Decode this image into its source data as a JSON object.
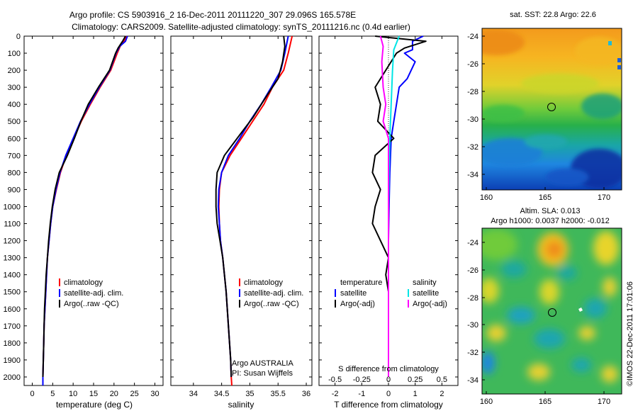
{
  "header": {
    "title_line1": "Argo profile: CS 5903916_2 16-Dec-2011 20111220_307 29.096S 165.578E",
    "title_line2": "Climatology: CARS2009. Satellite-adjusted climatology: synTS_20111216.nc (0.4d earlier)"
  },
  "colors": {
    "climatology": "#ff0000",
    "satellite": "#0000ff",
    "argo": "#000000",
    "salinity_satellite": "#00e5e5",
    "salinity_argo": "#ff00ff"
  },
  "chart_data": [
    {
      "id": "temperature",
      "type": "line",
      "xlabel": "temperature (deg C)",
      "xlim": [
        -2,
        32
      ],
      "xticks": [
        0,
        5,
        10,
        15,
        20,
        25,
        30
      ],
      "ylim": [
        0,
        2050
      ],
      "yticks": [
        0,
        100,
        200,
        300,
        400,
        500,
        600,
        700,
        800,
        900,
        1000,
        1100,
        1200,
        1300,
        1400,
        1500,
        1600,
        1700,
        1800,
        1900,
        2000
      ],
      "legend": [
        "climatology",
        "satellite-adj. clim.",
        "Argo(..raw -QC)"
      ],
      "series": [
        {
          "name": "climatology",
          "color": "#ff0000",
          "points": [
            [
              23.0,
              0
            ],
            [
              22.4,
              30
            ],
            [
              21.5,
              60
            ],
            [
              20.8,
              100
            ],
            [
              19.2,
              200
            ],
            [
              16.6,
              300
            ],
            [
              14.2,
              400
            ],
            [
              12.0,
              500
            ],
            [
              10.1,
              600
            ],
            [
              8.3,
              700
            ],
            [
              6.9,
              800
            ],
            [
              5.9,
              900
            ],
            [
              5.0,
              1000
            ],
            [
              4.5,
              1100
            ],
            [
              4.1,
              1200
            ],
            [
              3.7,
              1300
            ],
            [
              3.5,
              1400
            ],
            [
              3.3,
              1500
            ],
            [
              3.1,
              1600
            ],
            [
              2.9,
              1700
            ],
            [
              2.8,
              1800
            ],
            [
              2.7,
              1900
            ],
            [
              2.6,
              2000
            ],
            [
              2.6,
              2050
            ]
          ]
        },
        {
          "name": "satellite-adj. clim.",
          "color": "#0000ff",
          "points": [
            [
              23.3,
              0
            ],
            [
              22.8,
              30
            ],
            [
              21.4,
              60
            ],
            [
              20.5,
              100
            ],
            [
              19.0,
              200
            ],
            [
              16.4,
              300
            ],
            [
              14.0,
              400
            ],
            [
              11.8,
              500
            ],
            [
              10.0,
              600
            ],
            [
              8.2,
              700
            ],
            [
              6.8,
              800
            ],
            [
              5.8,
              900
            ],
            [
              5.0,
              1000
            ],
            [
              4.5,
              1100
            ],
            [
              4.1,
              1200
            ],
            [
              3.7,
              1300
            ],
            [
              3.5,
              1400
            ],
            [
              3.3,
              1500
            ],
            [
              3.1,
              1600
            ],
            [
              2.9,
              1700
            ],
            [
              2.8,
              1800
            ],
            [
              2.7,
              1900
            ],
            [
              2.6,
              2000
            ],
            [
              2.6,
              2050
            ]
          ]
        },
        {
          "name": "Argo(..raw -QC)",
          "color": "#000000",
          "points": [
            [
              22.8,
              0
            ],
            [
              22.1,
              30
            ],
            [
              21.0,
              70
            ],
            [
              20.4,
              100
            ],
            [
              18.9,
              200
            ],
            [
              16.2,
              300
            ],
            [
              13.7,
              400
            ],
            [
              11.9,
              500
            ],
            [
              10.3,
              600
            ],
            [
              8.6,
              700
            ],
            [
              6.6,
              800
            ],
            [
              5.6,
              900
            ],
            [
              4.9,
              1000
            ],
            [
              4.4,
              1100
            ],
            [
              4.0,
              1200
            ],
            [
              3.7,
              1300
            ],
            [
              3.4,
              1400
            ],
            [
              3.2,
              1500
            ],
            [
              3.0,
              1600
            ],
            [
              2.9,
              1700
            ],
            [
              2.8,
              1800
            ],
            [
              2.7,
              1900
            ],
            [
              2.6,
              2000
            ]
          ]
        }
      ]
    },
    {
      "id": "salinity",
      "type": "line",
      "xlabel": "salinity",
      "xlim": [
        33.6,
        36.1
      ],
      "xticks": [
        34,
        34.5,
        35,
        35.5,
        36
      ],
      "ylim": [
        0,
        2050
      ],
      "legend": [
        "climatology",
        "satellite-adj. clim.",
        "Argo(..raw -QC)"
      ],
      "annotation": [
        "Argo AUSTRALIA",
        "PI: Susan Wijffels"
      ],
      "series": [
        {
          "name": "climatology",
          "color": "#ff0000",
          "points": [
            [
              35.75,
              0
            ],
            [
              35.68,
              100
            ],
            [
              35.6,
              200
            ],
            [
              35.4,
              300
            ],
            [
              35.25,
              400
            ],
            [
              35.05,
              500
            ],
            [
              34.85,
              600
            ],
            [
              34.65,
              700
            ],
            [
              34.5,
              800
            ],
            [
              34.46,
              900
            ],
            [
              34.45,
              1000
            ],
            [
              34.46,
              1100
            ],
            [
              34.48,
              1200
            ],
            [
              34.52,
              1300
            ],
            [
              34.55,
              1400
            ],
            [
              34.58,
              1500
            ],
            [
              34.6,
              1600
            ],
            [
              34.62,
              1700
            ],
            [
              34.64,
              1800
            ],
            [
              34.66,
              1900
            ],
            [
              34.67,
              2000
            ],
            [
              34.68,
              2050
            ]
          ]
        },
        {
          "name": "satellite-adj. clim.",
          "color": "#0000ff",
          "points": [
            [
              35.68,
              0
            ],
            [
              35.62,
              100
            ],
            [
              35.55,
              200
            ],
            [
              35.38,
              300
            ],
            [
              35.2,
              400
            ],
            [
              35.0,
              500
            ],
            [
              34.82,
              600
            ],
            [
              34.62,
              700
            ],
            [
              34.5,
              800
            ],
            [
              34.45,
              900
            ],
            [
              34.44,
              1000
            ],
            [
              34.46,
              1100
            ],
            [
              34.48,
              1200
            ],
            [
              34.52,
              1300
            ],
            [
              34.55,
              1400
            ],
            [
              34.58,
              1500
            ],
            [
              34.6,
              1600
            ],
            [
              34.62,
              1700
            ],
            [
              34.64,
              1800
            ],
            [
              34.66,
              1900
            ],
            [
              34.67,
              2000
            ]
          ]
        },
        {
          "name": "Argo(..raw -QC)",
          "color": "#000000",
          "points": [
            [
              35.6,
              0
            ],
            [
              35.62,
              60
            ],
            [
              35.58,
              150
            ],
            [
              35.5,
              250
            ],
            [
              35.3,
              350
            ],
            [
              35.05,
              480
            ],
            [
              34.82,
              580
            ],
            [
              34.55,
              700
            ],
            [
              34.42,
              800
            ],
            [
              34.4,
              900
            ],
            [
              34.4,
              1000
            ],
            [
              34.42,
              1100
            ],
            [
              34.47,
              1200
            ],
            [
              34.52,
              1300
            ],
            [
              34.55,
              1400
            ],
            [
              34.58,
              1500
            ],
            [
              34.6,
              1600
            ],
            [
              34.62,
              1700
            ],
            [
              34.64,
              1800
            ],
            [
              34.66,
              1900
            ],
            [
              34.67,
              2000
            ]
          ]
        }
      ]
    },
    {
      "id": "difference",
      "type": "line",
      "xlabel": "T difference from climatology",
      "xlabel_top": "S difference from climatology",
      "xlim": [
        -2.6,
        2.6
      ],
      "xticks": [
        -2,
        -1,
        0,
        1,
        2
      ],
      "xticks_S": [
        "-0.5",
        "-0.25",
        "0",
        "0.25",
        "0.5"
      ],
      "ylim": [
        0,
        2050
      ],
      "legend_temperature": {
        "heading": "temperature",
        "items": [
          "satellite",
          "Argo(-adj)"
        ]
      },
      "legend_salinity": {
        "heading": "salinity",
        "items": [
          "satellite",
          "Argo(-adj)"
        ]
      },
      "series": [
        {
          "name": "temperature satellite",
          "color": "#0000ff",
          "points": [
            [
              1.3,
              0
            ],
            [
              0.9,
              30
            ],
            [
              0.9,
              80
            ],
            [
              0.6,
              100
            ],
            [
              1.0,
              150
            ],
            [
              0.7,
              250
            ],
            [
              0.4,
              300
            ],
            [
              0.3,
              400
            ],
            [
              0.2,
              500
            ],
            [
              0.1,
              600
            ],
            [
              0.05,
              800
            ],
            [
              0.02,
              1000
            ],
            [
              0.0,
              1200
            ],
            [
              0.0,
              1500
            ],
            [
              0.0,
              2000
            ]
          ]
        },
        {
          "name": "temperature Argo(-adj)",
          "color": "#000000",
          "points": [
            [
              -0.5,
              0
            ],
            [
              1.4,
              30
            ],
            [
              0.6,
              70
            ],
            [
              0.3,
              100
            ],
            [
              -0.1,
              200
            ],
            [
              -0.5,
              300
            ],
            [
              -0.3,
              400
            ],
            [
              -0.4,
              500
            ],
            [
              0.2,
              600
            ],
            [
              -0.5,
              700
            ],
            [
              -0.6,
              800
            ],
            [
              -0.3,
              900
            ],
            [
              -0.5,
              1000
            ],
            [
              -0.6,
              1100
            ],
            [
              -0.3,
              1200
            ],
            [
              0.0,
              1300
            ],
            [
              -0.1,
              1400
            ],
            [
              0.0,
              1500
            ],
            [
              0.0,
              1700
            ],
            [
              0.0,
              2000
            ]
          ]
        },
        {
          "name": "salinity satellite",
          "color": "#00e5e5",
          "points": [
            [
              0.4,
              0
            ],
            [
              0.2,
              80
            ],
            [
              0.15,
              200
            ],
            [
              0.1,
              400
            ],
            [
              0.05,
              600
            ],
            [
              0.02,
              800
            ],
            [
              0.0,
              1000
            ],
            [
              0.0,
              1500
            ],
            [
              0.0,
              2000
            ]
          ]
        },
        {
          "name": "salinity Argo(-adj)",
          "color": "#ff00ff",
          "points": [
            [
              -0.3,
              0
            ],
            [
              -0.2,
              60
            ],
            [
              -0.25,
              150
            ],
            [
              -0.2,
              300
            ],
            [
              -0.1,
              400
            ],
            [
              -0.2,
              500
            ],
            [
              0.0,
              600
            ],
            [
              0.0,
              1000
            ],
            [
              0.0,
              2000
            ]
          ]
        }
      ]
    }
  ],
  "maps": {
    "sst": {
      "title": "sat. SST: 22.8 Argo: 22.6",
      "xticks": [
        "160",
        "165",
        "170"
      ],
      "yticks": [
        "-24",
        "-26",
        "-28",
        "-30",
        "-32",
        "-34"
      ]
    },
    "sla": {
      "title_line1": "Altim. SLA: 0.013",
      "title_line2": "Argo h1000: 0.0037 h2000: -0.012",
      "xticks": [
        "160",
        "165",
        "170"
      ],
      "yticks": [
        "-24",
        "-26",
        "-28",
        "-30",
        "-32",
        "-34"
      ]
    }
  },
  "footer": {
    "credit": "©IMOS 22-Dec-2011 17:01:06"
  }
}
